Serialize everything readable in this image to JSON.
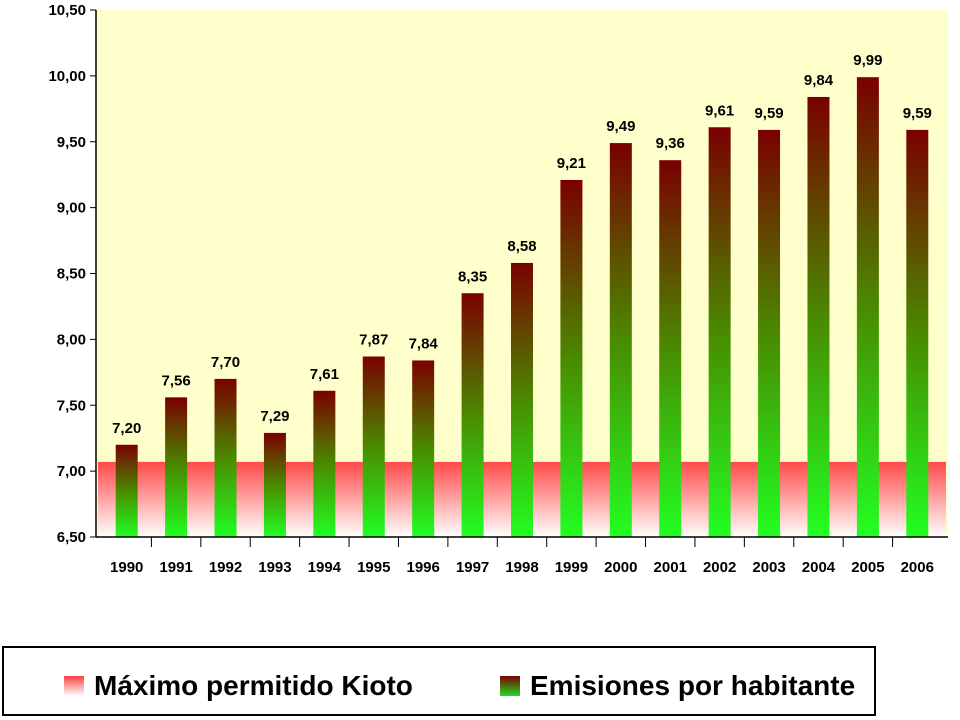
{
  "chart_data": {
    "type": "bar",
    "categories": [
      "1990",
      "1991",
      "1992",
      "1993",
      "1994",
      "1995",
      "1996",
      "1997",
      "1998",
      "1999",
      "2000",
      "2001",
      "2002",
      "2003",
      "2004",
      "2005",
      "2006"
    ],
    "series": [
      {
        "name": "Emisiones por habitante",
        "values": [
          7.2,
          7.56,
          7.7,
          7.29,
          7.61,
          7.87,
          7.84,
          8.35,
          8.58,
          9.21,
          9.49,
          9.36,
          9.61,
          9.59,
          9.84,
          9.99,
          9.59
        ],
        "data_labels": [
          "7,20",
          "7,56",
          "7,70",
          "7,29",
          "7,61",
          "7,87",
          "7,84",
          "8,35",
          "8,58",
          "9,21",
          "9,49",
          "9,36",
          "9,61",
          "9,59",
          "9,84",
          "9,99",
          "9,59"
        ]
      }
    ],
    "reference_line": {
      "name": "Máximo permitido Kioto",
      "value": 7.07
    },
    "ylim": [
      6.5,
      10.5
    ],
    "yticks": [
      6.5,
      7.0,
      7.5,
      8.0,
      8.5,
      9.0,
      9.5,
      10.0,
      10.5
    ],
    "ytick_labels": [
      "6,50",
      "7,00",
      "7,50",
      "8,00",
      "8,50",
      "9,00",
      "9,50",
      "10,00",
      "10,50"
    ],
    "title": "",
    "xlabel": "",
    "ylabel": "",
    "grid": false,
    "legend_position": "bottom",
    "colors": {
      "plot_background": "#FFFFCC",
      "bar_top": "#7A0000",
      "bar_bottom": "#22FF22",
      "band_top": "#FF5050",
      "band_bottom": "#FFFFFF"
    }
  },
  "legend": [
    {
      "label": "Máximo permitido Kioto",
      "swatch": "red-gradient"
    },
    {
      "label": "Emisiones por habitante",
      "swatch": "green-gradient"
    }
  ]
}
